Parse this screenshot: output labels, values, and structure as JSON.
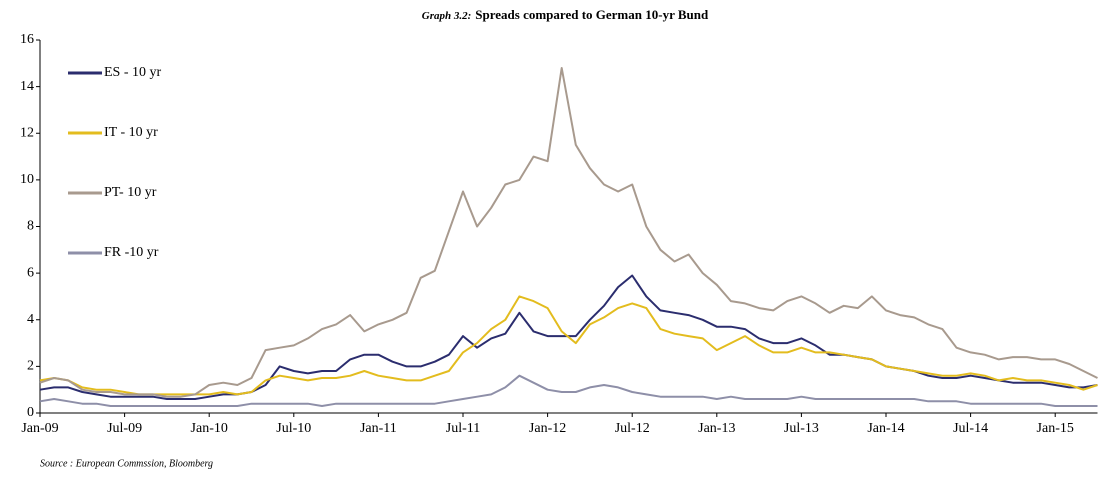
{
  "chart_data": {
    "type": "line",
    "title_prefix": "Graph 3.2:",
    "title": "Spreads compared to German 10-yr Bund",
    "source": "Source : European Commssion, Bloomberg",
    "categories": [
      "Jan-09",
      null,
      null,
      null,
      null,
      null,
      "Jul-09",
      null,
      null,
      null,
      null,
      null,
      "Jan-10",
      null,
      null,
      null,
      null,
      null,
      "Jul-10",
      null,
      null,
      null,
      null,
      null,
      "Jan-11",
      null,
      null,
      null,
      null,
      null,
      "Jul-11",
      null,
      null,
      null,
      null,
      null,
      "Jan-12",
      null,
      null,
      null,
      null,
      null,
      "Jul-12",
      null,
      null,
      null,
      null,
      null,
      "Jan-13",
      null,
      null,
      null,
      null,
      null,
      "Jul-13",
      null,
      null,
      null,
      null,
      null,
      "Jan-14",
      null,
      null,
      null,
      null,
      null,
      "Jul-14",
      null,
      null,
      null,
      null,
      null,
      "Jan-15",
      null,
      null,
      null
    ],
    "series": [
      {
        "name": "ES - 10 yr",
        "color": "#2b2d6e",
        "values": [
          1.0,
          1.1,
          1.1,
          0.9,
          0.8,
          0.7,
          0.7,
          0.7,
          0.7,
          0.6,
          0.6,
          0.6,
          0.7,
          0.8,
          0.8,
          0.9,
          1.2,
          2.0,
          1.8,
          1.7,
          1.8,
          1.8,
          2.3,
          2.5,
          2.5,
          2.2,
          2.0,
          2.0,
          2.2,
          2.5,
          3.3,
          2.8,
          3.2,
          3.4,
          4.3,
          3.5,
          3.3,
          3.3,
          3.3,
          4.0,
          4.6,
          5.4,
          5.9,
          5.0,
          4.4,
          4.3,
          4.2,
          4.0,
          3.7,
          3.7,
          3.6,
          3.2,
          3.0,
          3.0,
          3.2,
          2.9,
          2.5,
          2.5,
          2.4,
          2.3,
          2.0,
          1.9,
          1.8,
          1.6,
          1.5,
          1.5,
          1.6,
          1.5,
          1.4,
          1.3,
          1.3,
          1.3,
          1.2,
          1.1,
          1.1,
          1.2
        ]
      },
      {
        "name": "IT - 10 yr",
        "color": "#e3bc1e",
        "values": [
          1.4,
          1.5,
          1.4,
          1.1,
          1.0,
          1.0,
          0.9,
          0.8,
          0.8,
          0.8,
          0.8,
          0.8,
          0.8,
          0.9,
          0.8,
          0.9,
          1.4,
          1.6,
          1.5,
          1.4,
          1.5,
          1.5,
          1.6,
          1.8,
          1.6,
          1.5,
          1.4,
          1.4,
          1.6,
          1.8,
          2.6,
          3.0,
          3.6,
          4.0,
          5.0,
          4.8,
          4.5,
          3.5,
          3.0,
          3.8,
          4.1,
          4.5,
          4.7,
          4.5,
          3.6,
          3.4,
          3.3,
          3.2,
          2.7,
          3.0,
          3.3,
          2.9,
          2.6,
          2.6,
          2.8,
          2.6,
          2.6,
          2.5,
          2.4,
          2.3,
          2.0,
          1.9,
          1.8,
          1.7,
          1.6,
          1.6,
          1.7,
          1.6,
          1.4,
          1.5,
          1.4,
          1.4,
          1.3,
          1.2,
          1.0,
          1.2
        ]
      },
      {
        "name": "PT- 10 yr",
        "color": "#a89a8e",
        "values": [
          1.3,
          1.5,
          1.4,
          1.0,
          0.9,
          0.9,
          0.8,
          0.8,
          0.8,
          0.7,
          0.7,
          0.8,
          1.2,
          1.3,
          1.2,
          1.5,
          2.7,
          2.8,
          2.9,
          3.2,
          3.6,
          3.8,
          4.2,
          3.5,
          3.8,
          4.0,
          4.3,
          5.8,
          6.1,
          7.8,
          9.5,
          8.0,
          8.8,
          9.8,
          10.0,
          11.0,
          10.8,
          14.8,
          11.5,
          10.5,
          9.8,
          9.5,
          9.8,
          8.0,
          7.0,
          6.5,
          6.8,
          6.0,
          5.5,
          4.8,
          4.7,
          4.5,
          4.4,
          4.8,
          5.0,
          4.7,
          4.3,
          4.6,
          4.5,
          5.0,
          4.4,
          4.2,
          4.1,
          3.8,
          3.6,
          2.8,
          2.6,
          2.5,
          2.3,
          2.4,
          2.4,
          2.3,
          2.3,
          2.1,
          1.8,
          1.5
        ]
      },
      {
        "name": "FR -10 yr",
        "color": "#8e8fa8",
        "values": [
          0.5,
          0.6,
          0.5,
          0.4,
          0.4,
          0.3,
          0.3,
          0.3,
          0.3,
          0.3,
          0.3,
          0.3,
          0.3,
          0.3,
          0.3,
          0.4,
          0.4,
          0.4,
          0.4,
          0.4,
          0.3,
          0.4,
          0.4,
          0.4,
          0.4,
          0.4,
          0.4,
          0.4,
          0.4,
          0.5,
          0.6,
          0.7,
          0.8,
          1.1,
          1.6,
          1.3,
          1.0,
          0.9,
          0.9,
          1.1,
          1.2,
          1.1,
          0.9,
          0.8,
          0.7,
          0.7,
          0.7,
          0.7,
          0.6,
          0.7,
          0.6,
          0.6,
          0.6,
          0.6,
          0.7,
          0.6,
          0.6,
          0.6,
          0.6,
          0.6,
          0.6,
          0.6,
          0.6,
          0.5,
          0.5,
          0.5,
          0.4,
          0.4,
          0.4,
          0.4,
          0.4,
          0.4,
          0.3,
          0.3,
          0.3,
          0.3
        ]
      }
    ],
    "ylim": [
      0,
      16
    ],
    "yticks": [
      0,
      2,
      4,
      6,
      8,
      10,
      12,
      14,
      16
    ],
    "grid": false,
    "legend": "upper left"
  }
}
